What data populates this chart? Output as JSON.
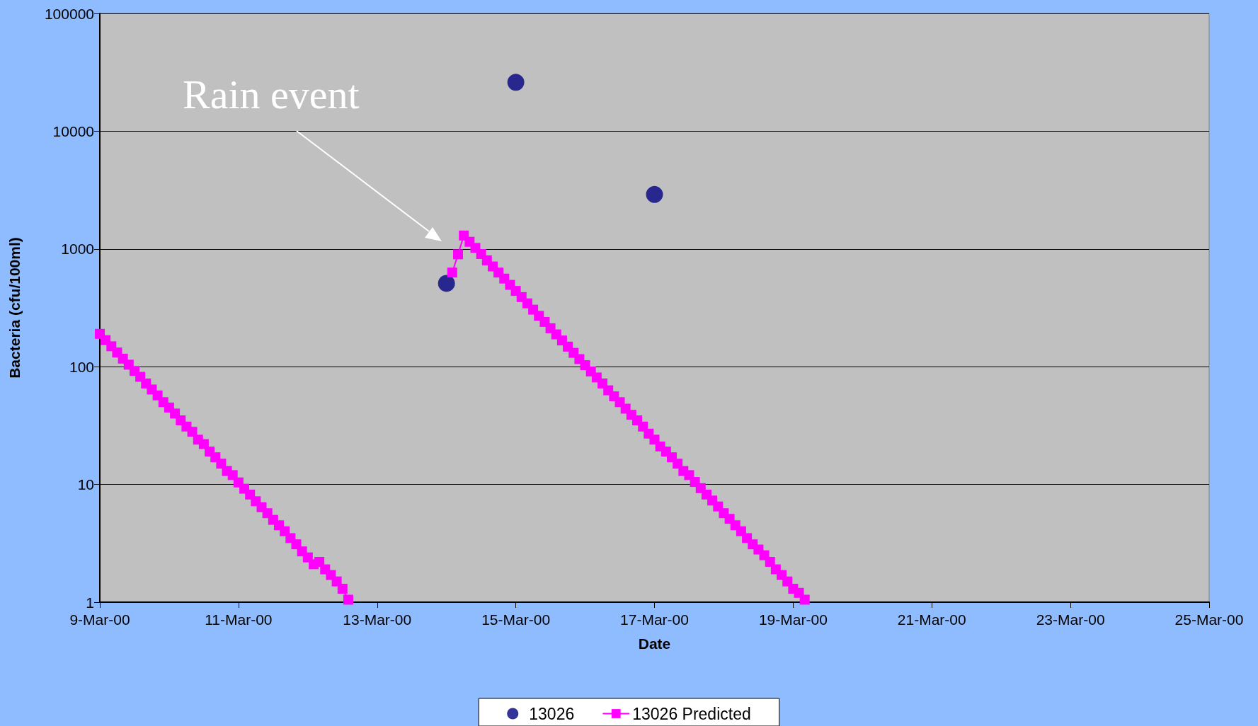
{
  "chart_data": {
    "type": "scatter",
    "xlabel": "Date",
    "ylabel": "Bacteria (cfu/100ml)",
    "xlim": [
      "2000-03-09",
      "2000-03-25"
    ],
    "xticks": [
      {
        "value": "2000-03-09",
        "label": "9-Mar-00"
      },
      {
        "value": "2000-03-11",
        "label": "11-Mar-00"
      },
      {
        "value": "2000-03-13",
        "label": "13-Mar-00"
      },
      {
        "value": "2000-03-15",
        "label": "15-Mar-00"
      },
      {
        "value": "2000-03-17",
        "label": "17-Mar-00"
      },
      {
        "value": "2000-03-19",
        "label": "19-Mar-00"
      },
      {
        "value": "2000-03-21",
        "label": "21-Mar-00"
      },
      {
        "value": "2000-03-23",
        "label": "23-Mar-00"
      },
      {
        "value": "2000-03-25",
        "label": "25-Mar-00"
      }
    ],
    "ylim": [
      1,
      100000
    ],
    "yticks": [
      1,
      10,
      100,
      1000,
      10000,
      100000
    ],
    "log": "y",
    "grid": "y",
    "legend": "bottom",
    "annotations": [
      "Rain event"
    ],
    "series": [
      {
        "name": "13026",
        "marker": "circle",
        "color": "#000080",
        "x": [
          "2000-03-14",
          "2000-03-15",
          "2000-03-17"
        ],
        "values": [
          510,
          26000,
          2900
        ]
      },
      {
        "name": "13026 Predicted",
        "type": "line",
        "marker": "square",
        "line_style": "solid",
        "color": "#ff00ff",
        "x": [
          "2000-03-09T00:00",
          "2000-03-09T02:00",
          "2000-03-09T04:00",
          "2000-03-09T06:00",
          "2000-03-09T08:00",
          "2000-03-09T10:00",
          "2000-03-09T12:00",
          "2000-03-09T14:00",
          "2000-03-09T16:00",
          "2000-03-09T18:00",
          "2000-03-09T20:00",
          "2000-03-09T22:00",
          "2000-03-10T00:00",
          "2000-03-10T02:00",
          "2000-03-10T04:00",
          "2000-03-10T06:00",
          "2000-03-10T08:00",
          "2000-03-10T10:00",
          "2000-03-10T12:00",
          "2000-03-10T14:00",
          "2000-03-10T16:00",
          "2000-03-10T18:00",
          "2000-03-10T20:00",
          "2000-03-10T22:00",
          "2000-03-11T00:00",
          "2000-03-11T02:00",
          "2000-03-11T04:00",
          "2000-03-11T06:00",
          "2000-03-11T08:00",
          "2000-03-11T10:00",
          "2000-03-11T12:00",
          "2000-03-11T14:00",
          "2000-03-11T16:00",
          "2000-03-11T18:00",
          "2000-03-11T20:00",
          "2000-03-11T22:00",
          "2000-03-12T00:00",
          "2000-03-12T02:00",
          "2000-03-12T04:00",
          "2000-03-12T06:00",
          "2000-03-12T08:00",
          "2000-03-12T10:00",
          "2000-03-12T12:00",
          "2000-03-12T14:00",
          "2000-03-13T12:00",
          "2000-03-14T02:00",
          "2000-03-14T04:00",
          "2000-03-14T06:00",
          "2000-03-14T08:00",
          "2000-03-14T10:00",
          "2000-03-14T12:00",
          "2000-03-14T14:00",
          "2000-03-14T16:00",
          "2000-03-14T18:00",
          "2000-03-14T20:00",
          "2000-03-14T22:00",
          "2000-03-15T00:00",
          "2000-03-15T02:00",
          "2000-03-15T04:00",
          "2000-03-15T06:00",
          "2000-03-15T08:00",
          "2000-03-15T10:00",
          "2000-03-15T12:00",
          "2000-03-15T14:00",
          "2000-03-15T16:00",
          "2000-03-15T18:00",
          "2000-03-15T20:00",
          "2000-03-15T22:00",
          "2000-03-16T00:00",
          "2000-03-16T02:00",
          "2000-03-16T04:00",
          "2000-03-16T06:00",
          "2000-03-16T08:00",
          "2000-03-16T10:00",
          "2000-03-16T12:00",
          "2000-03-16T14:00",
          "2000-03-16T16:00",
          "2000-03-16T18:00",
          "2000-03-16T20:00",
          "2000-03-16T22:00",
          "2000-03-17T00:00",
          "2000-03-17T02:00",
          "2000-03-17T04:00",
          "2000-03-17T06:00",
          "2000-03-17T08:00",
          "2000-03-17T10:00",
          "2000-03-17T12:00",
          "2000-03-17T14:00",
          "2000-03-17T16:00",
          "2000-03-17T18:00",
          "2000-03-17T20:00",
          "2000-03-17T22:00",
          "2000-03-18T00:00",
          "2000-03-18T02:00",
          "2000-03-18T04:00",
          "2000-03-18T06:00",
          "2000-03-18T08:00",
          "2000-03-18T10:00",
          "2000-03-18T12:00",
          "2000-03-18T14:00",
          "2000-03-18T16:00",
          "2000-03-18T18:00",
          "2000-03-18T20:00",
          "2000-03-18T22:00",
          "2000-03-19T00:00",
          "2000-03-19T02:00",
          "2000-03-19T04:00"
        ],
        "values": [
          190,
          168,
          149,
          132,
          117,
          104,
          92,
          82,
          72,
          64,
          57,
          50,
          45,
          40,
          35,
          31,
          28,
          24,
          22,
          19,
          17,
          15,
          13,
          12,
          10.4,
          9.2,
          8.2,
          7.2,
          6.4,
          5.7,
          5.0,
          4.5,
          4.0,
          3.5,
          3.1,
          2.7,
          2.4,
          2.1,
          2.2,
          1.9,
          1.7,
          1.5,
          1.3,
          1.05,
          null,
          630,
          900,
          1300,
          1150,
          1020,
          905,
          800,
          710,
          630,
          560,
          495,
          440,
          390,
          345,
          305,
          270,
          240,
          212,
          188,
          167,
          148,
          131,
          116,
          103,
          91,
          81,
          72,
          63,
          56,
          50,
          44,
          39,
          35,
          31,
          27,
          24,
          21,
          19,
          17,
          15,
          13,
          12,
          10.5,
          9.3,
          8.2,
          7.3,
          6.5,
          5.7,
          5.1,
          4.5,
          4.0,
          3.5,
          3.1,
          2.8,
          2.5,
          2.2,
          1.9,
          1.7,
          1.5,
          1.3,
          1.2,
          1.05
        ]
      }
    ]
  }
}
